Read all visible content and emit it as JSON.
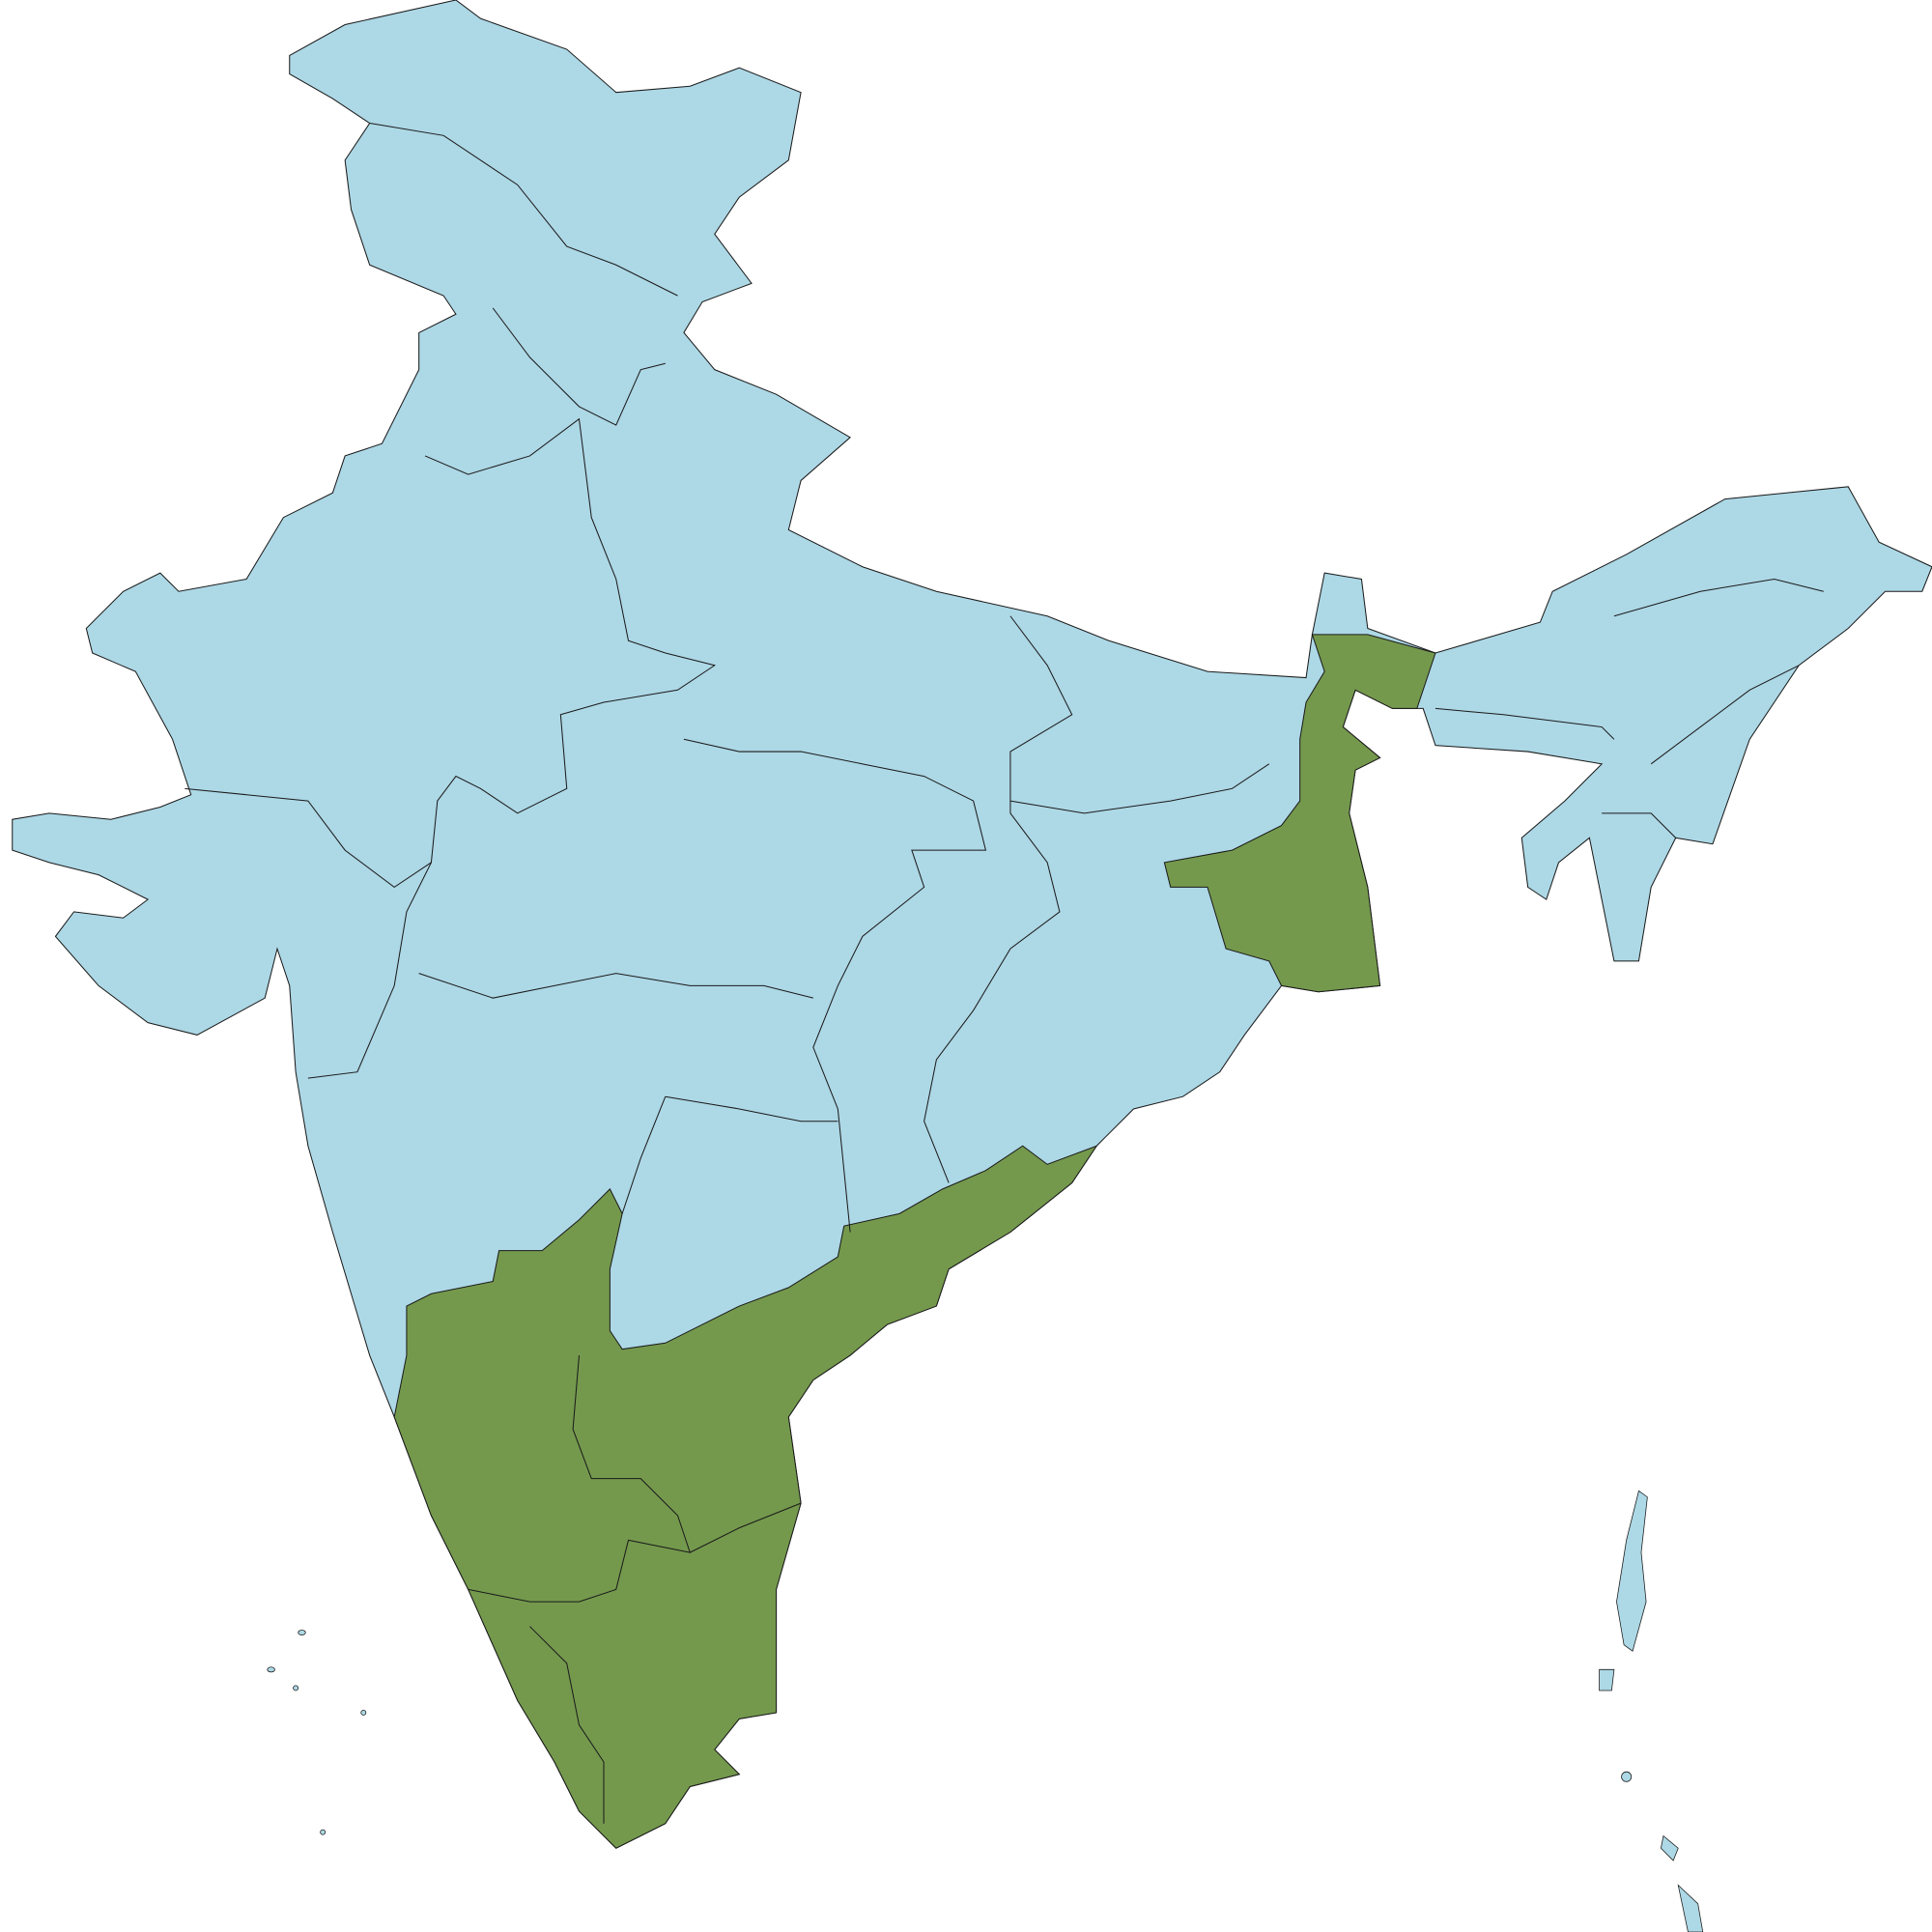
{
  "map": {
    "colors": {
      "base_fill": "#add8e6",
      "highlight_fill": "#74994d",
      "border": "#1a1a1a",
      "background": "#ffffff"
    }
  }
}
